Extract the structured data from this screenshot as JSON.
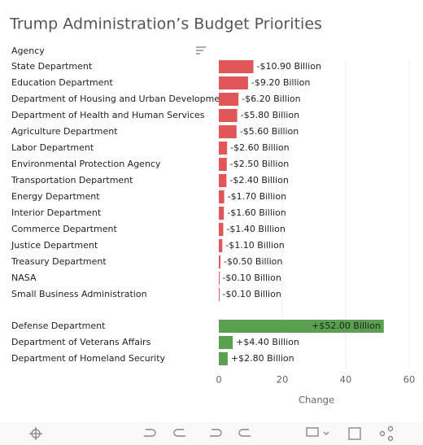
{
  "chart_data": {
    "type": "bar",
    "title": "Trump Administration’s Budget Priorities",
    "header": "Agency",
    "xlabel": "Change",
    "xlim": [
      0,
      60
    ],
    "xticks": [
      0,
      20,
      40,
      60
    ],
    "grid": true,
    "groups": [
      {
        "color": "#e15759",
        "categories": [
          "State Department",
          "Education Department",
          "Department of Housing and Urban Development",
          "Department of Health and Human Services",
          "Agriculture Department",
          "Labor Department",
          "Environmental Protection Agency",
          "Transportation Department",
          "Energy Department",
          "Interior Department",
          "Commerce Department",
          "Justice Department",
          "Treasury Department",
          "NASA",
          "Small Business Administration"
        ],
        "values": [
          -10.9,
          -9.2,
          -6.2,
          -5.8,
          -5.6,
          -2.6,
          -2.5,
          -2.4,
          -1.7,
          -1.6,
          -1.4,
          -1.1,
          -0.5,
          -0.1,
          -0.1
        ],
        "value_labels": [
          "-$10.90 Billion",
          "-$9.20 Billion",
          "-$6.20 Billion",
          "-$5.80 Billion",
          "-$5.60 Billion",
          "-$2.60 Billion",
          "-$2.50 Billion",
          "-$2.40 Billion",
          "-$1.70 Billion",
          "-$1.60 Billion",
          "-$1.40 Billion",
          "-$1.10 Billion",
          "-$0.50 Billion",
          "-$0.10 Billion",
          "-$0.10 Billion"
        ]
      },
      {
        "color": "#59a14f",
        "categories": [
          "Defense Department",
          "Department of Veterans Affairs",
          "Department of Homeland Security"
        ],
        "values": [
          52.0,
          4.4,
          2.8
        ],
        "value_labels": [
          "+$52.00 Billion",
          "+$4.40 Billion",
          "+$2.80 Billion"
        ]
      }
    ]
  }
}
